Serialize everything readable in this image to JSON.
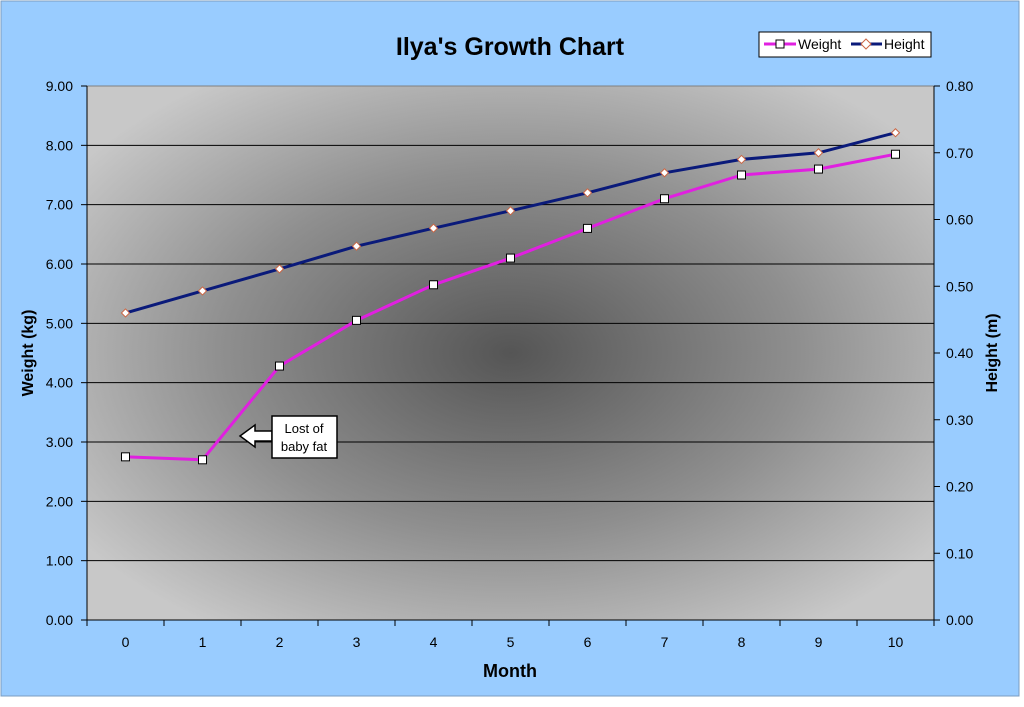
{
  "chart_data": {
    "type": "line",
    "title": "Ilya's Growth Chart",
    "xlabel": "Month",
    "ylabel": "Weight (kg)",
    "y2label": "Height (m)",
    "x": [
      0,
      1,
      2,
      3,
      4,
      5,
      6,
      7,
      8,
      9,
      10
    ],
    "xticks": [
      "0",
      "1",
      "2",
      "3",
      "4",
      "5",
      "6",
      "7",
      "8",
      "9",
      "10"
    ],
    "ylim": [
      0,
      9
    ],
    "yticks": [
      "0.00",
      "1.00",
      "2.00",
      "3.00",
      "4.00",
      "5.00",
      "6.00",
      "7.00",
      "8.00",
      "9.00"
    ],
    "y2lim": [
      0,
      0.8
    ],
    "y2ticks": [
      "0.00",
      "0.10",
      "0.20",
      "0.30",
      "0.40",
      "0.50",
      "0.60",
      "0.70",
      "0.80"
    ],
    "grid": true,
    "legend_position": "top-right",
    "series": [
      {
        "name": "Weight",
        "axis": "left",
        "color": "#e020e0",
        "marker": "square",
        "values": [
          2.75,
          2.7,
          4.28,
          5.05,
          5.65,
          6.1,
          6.6,
          7.1,
          7.5,
          7.6,
          7.85
        ]
      },
      {
        "name": "Height",
        "axis": "right",
        "color": "#0a1a7a",
        "marker": "diamond",
        "values": [
          0.46,
          0.493,
          0.526,
          0.56,
          0.587,
          0.613,
          0.64,
          0.67,
          0.69,
          0.7,
          0.73
        ]
      }
    ],
    "annotations": [
      {
        "lines": [
          "Lost of",
          "baby fat"
        ],
        "points_to_x": 1.5,
        "points_to_y": 3.1
      }
    ]
  },
  "colors": {
    "outer_background": "#99ccff",
    "plot_light": "#c8c8c8",
    "plot_dark": "#555555",
    "gridline": "#000000"
  }
}
